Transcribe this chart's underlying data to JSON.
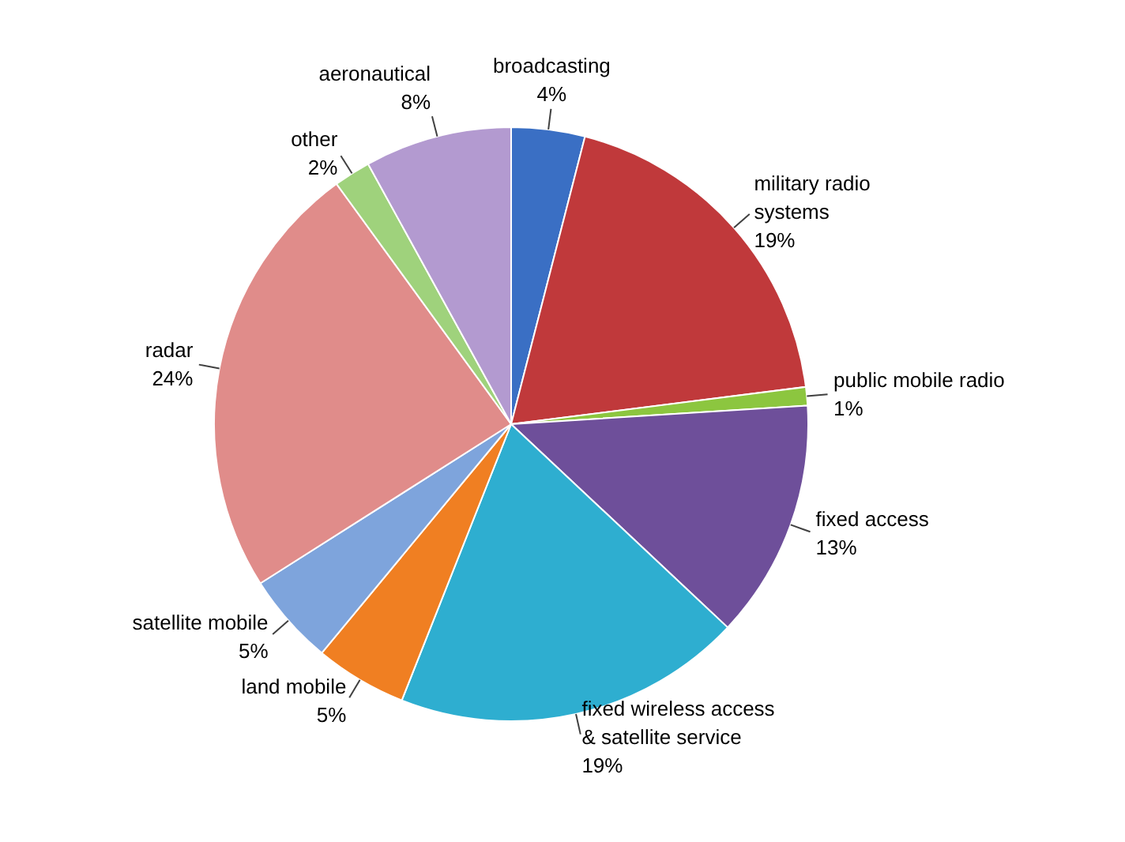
{
  "chart_data": {
    "type": "pie",
    "categories": [
      "broadcasting",
      "military radio systems",
      "public mobile radio",
      "fixed access",
      "fixed wireless access & satellite service",
      "land mobile",
      "satellite mobile",
      "radar",
      "other",
      "aeronautical"
    ],
    "values": [
      4,
      19,
      1,
      13,
      19,
      5,
      5,
      24,
      2,
      8
    ],
    "value_labels": [
      "4%",
      "19%",
      "1%",
      "13%",
      "19%",
      "5%",
      "5%",
      "24%",
      "2%",
      "8%"
    ],
    "colors": [
      "#3a6fc4",
      "#c0393b",
      "#8cc63f",
      "#6e4f9a",
      "#2eaed0",
      "#f07f22",
      "#7ea4dc",
      "#e08c8a",
      "#9fd27c",
      "#b39ad0"
    ],
    "legend": false
  }
}
